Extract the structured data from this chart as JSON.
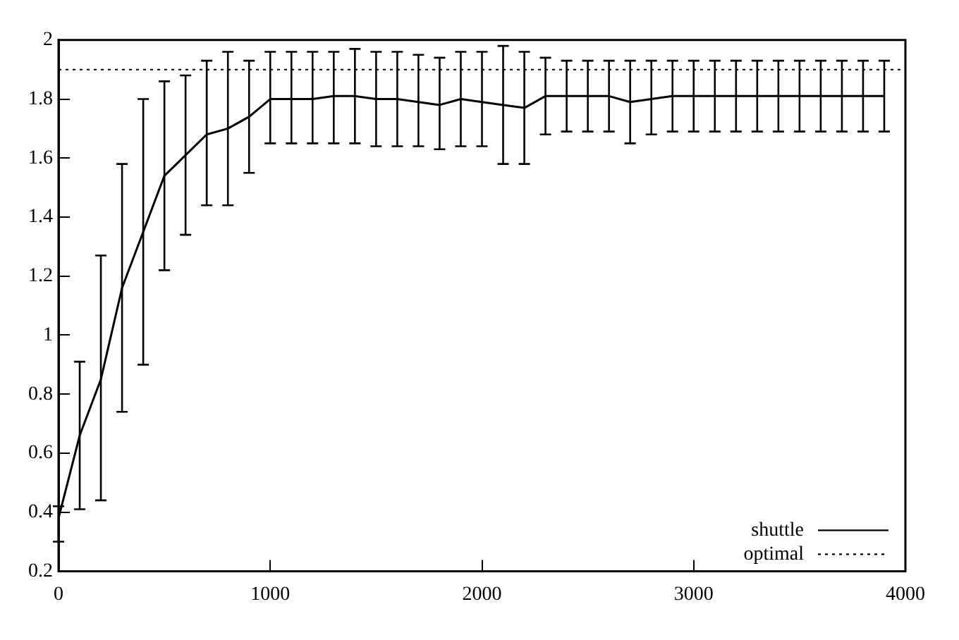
{
  "chart_data": {
    "type": "line",
    "x": [
      0,
      100,
      200,
      300,
      400,
      500,
      600,
      700,
      800,
      900,
      1000,
      1100,
      1200,
      1300,
      1400,
      1500,
      1600,
      1700,
      1800,
      1900,
      2000,
      2100,
      2200,
      2300,
      2400,
      2500,
      2600,
      2700,
      2800,
      2900,
      3000,
      3100,
      3200,
      3300,
      3400,
      3500,
      3600,
      3700,
      3800,
      3900
    ],
    "series": [
      {
        "name": "shuttle",
        "color": "#000000",
        "values": [
          0.38,
          0.66,
          0.85,
          1.16,
          1.35,
          1.54,
          1.61,
          1.68,
          1.7,
          1.74,
          1.8,
          1.8,
          1.8,
          1.81,
          1.81,
          1.8,
          1.8,
          1.79,
          1.78,
          1.8,
          1.79,
          1.78,
          1.77,
          1.81,
          1.81,
          1.81,
          1.81,
          1.79,
          1.8,
          1.81,
          1.81,
          1.81,
          1.81,
          1.81,
          1.81,
          1.81,
          1.81,
          1.81,
          1.81,
          1.81
        ],
        "errors": [
          [
            0.3,
            0.42
          ],
          [
            0.41,
            0.91
          ],
          [
            0.44,
            1.27
          ],
          [
            0.74,
            1.58
          ],
          [
            0.9,
            1.8
          ],
          [
            1.22,
            1.86
          ],
          [
            1.34,
            1.88
          ],
          [
            1.44,
            1.93
          ],
          [
            1.44,
            1.96
          ],
          [
            1.55,
            1.93
          ],
          [
            1.65,
            1.96
          ],
          [
            1.65,
            1.96
          ],
          [
            1.65,
            1.96
          ],
          [
            1.65,
            1.96
          ],
          [
            1.65,
            1.97
          ],
          [
            1.64,
            1.96
          ],
          [
            1.64,
            1.96
          ],
          [
            1.64,
            1.95
          ],
          [
            1.63,
            1.94
          ],
          [
            1.64,
            1.96
          ],
          [
            1.64,
            1.96
          ],
          [
            1.58,
            1.98
          ],
          [
            1.58,
            1.96
          ],
          [
            1.68,
            1.94
          ],
          [
            1.69,
            1.93
          ],
          [
            1.69,
            1.93
          ],
          [
            1.69,
            1.93
          ],
          [
            1.65,
            1.93
          ],
          [
            1.68,
            1.93
          ],
          [
            1.69,
            1.93
          ],
          [
            1.69,
            1.93
          ],
          [
            1.69,
            1.93
          ],
          [
            1.69,
            1.93
          ],
          [
            1.69,
            1.93
          ],
          [
            1.69,
            1.93
          ],
          [
            1.69,
            1.93
          ],
          [
            1.69,
            1.93
          ],
          [
            1.69,
            1.93
          ],
          [
            1.69,
            1.93
          ],
          [
            1.69,
            1.93
          ]
        ]
      }
    ],
    "ref_lines": [
      {
        "axis": "y",
        "value": 1.9,
        "label": "optimal",
        "color": "#000000",
        "line_style": "dotted"
      }
    ],
    "xlim": [
      0,
      4000
    ],
    "xticks": [
      0,
      1000,
      2000,
      3000,
      4000
    ],
    "ylim": [
      0.2,
      2
    ],
    "yticks": [
      0.2,
      0.4,
      0.6,
      0.8,
      1,
      1.2,
      1.4,
      1.6,
      1.8,
      2
    ],
    "grid": false,
    "legend": "bottom right",
    "marker": "none",
    "line_style": "solid"
  }
}
